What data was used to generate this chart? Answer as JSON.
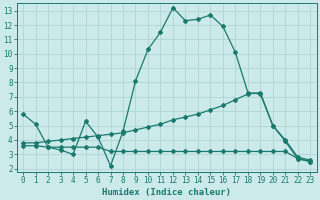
{
  "xlabel": "Humidex (Indice chaleur)",
  "bg_color": "#cceaea",
  "grid_color": "#b0d4d4",
  "line_color": "#1a7a6e",
  "xlim": [
    -0.5,
    23.5
  ],
  "ylim": [
    1.8,
    13.5
  ],
  "yticks": [
    2,
    3,
    4,
    5,
    6,
    7,
    8,
    9,
    10,
    11,
    12,
    13
  ],
  "xticks": [
    0,
    1,
    2,
    3,
    4,
    5,
    6,
    7,
    8,
    9,
    10,
    11,
    12,
    13,
    14,
    15,
    16,
    17,
    18,
    19,
    20,
    21,
    22,
    23
  ],
  "series": [
    {
      "x": [
        0,
        1,
        2,
        3,
        4,
        5,
        6,
        7,
        8,
        9,
        10,
        11,
        12,
        13,
        14,
        15,
        16,
        17,
        18,
        19,
        20,
        21,
        22,
        23
      ],
      "y": [
        5.8,
        5.1,
        3.5,
        3.3,
        3.0,
        5.3,
        4.2,
        2.2,
        4.6,
        8.1,
        10.3,
        11.5,
        13.2,
        12.3,
        12.4,
        12.7,
        11.9,
        10.1,
        7.3,
        7.2,
        5.0,
        4.0,
        2.8,
        2.6
      ]
    },
    {
      "x": [
        0,
        1,
        2,
        3,
        4,
        5,
        6,
        7,
        8,
        9,
        10,
        11,
        12,
        13,
        14,
        15,
        16,
        17,
        18,
        19,
        20,
        21,
        22,
        23
      ],
      "y": [
        3.6,
        3.6,
        3.5,
        3.5,
        3.5,
        3.5,
        3.5,
        3.2,
        3.2,
        3.2,
        3.2,
        3.2,
        3.2,
        3.2,
        3.2,
        3.2,
        3.2,
        3.2,
        3.2,
        3.2,
        3.2,
        3.2,
        2.7,
        2.5
      ]
    },
    {
      "x": [
        0,
        1,
        2,
        3,
        4,
        5,
        6,
        7,
        8,
        9,
        10,
        11,
        12,
        13,
        14,
        15,
        16,
        17,
        18,
        19,
        20,
        21,
        22,
        23
      ],
      "y": [
        3.8,
        3.8,
        3.9,
        4.0,
        4.1,
        4.2,
        4.3,
        4.4,
        4.5,
        4.7,
        4.9,
        5.1,
        5.4,
        5.6,
        5.8,
        6.1,
        6.4,
        6.8,
        7.2,
        7.3,
        5.0,
        3.9,
        2.7,
        2.5
      ]
    }
  ]
}
